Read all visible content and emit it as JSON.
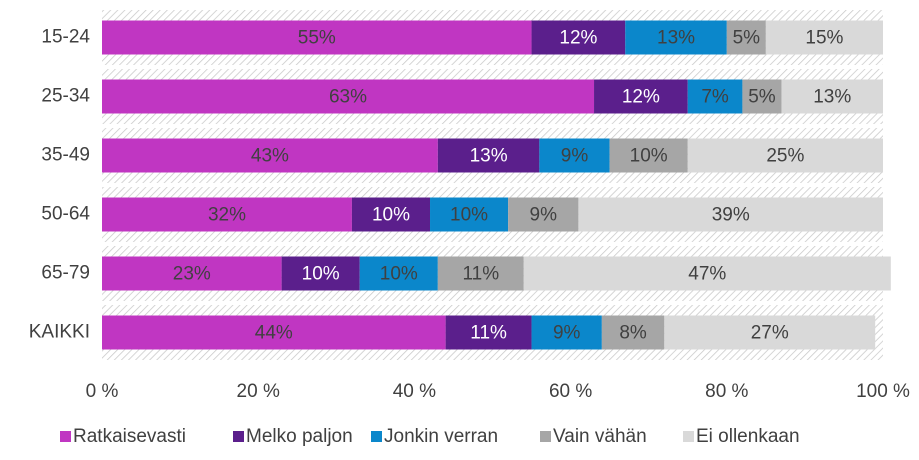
{
  "chart_data": {
    "type": "stacked-barh",
    "categories": [
      "15-24",
      "25-34",
      "35-49",
      "50-64",
      "65-79",
      "KAIKKI"
    ],
    "series": [
      {
        "name": "Ratkaisevasti",
        "color": "#c036c2",
        "values": [
          55,
          63,
          43,
          32,
          23,
          44
        ],
        "value_labels": [
          "55%",
          "63%",
          "43%",
          "32%",
          "23%",
          "44%"
        ]
      },
      {
        "name": "Melko paljon",
        "color": "#5b1f8c",
        "values": [
          12,
          12,
          13,
          10,
          10,
          11
        ],
        "value_labels": [
          "12%",
          "12%",
          "13%",
          "10%",
          "10%",
          "11%"
        ]
      },
      {
        "name": "Jonkin verran",
        "color": "#0b87cb",
        "values": [
          13,
          7,
          9,
          10,
          10,
          9
        ],
        "value_labels": [
          "13%",
          "7%",
          "9%",
          "10%",
          "10%",
          "9%"
        ]
      },
      {
        "name": "Vain vähän",
        "color": "#a6a6a6",
        "values": [
          5,
          5,
          10,
          9,
          11,
          8
        ],
        "value_labels": [
          "5%",
          "5%",
          "10%",
          "9%",
          "11%",
          "8%"
        ]
      },
      {
        "name": "Ei ollenkaan",
        "color": "#d9d9d9",
        "values": [
          15,
          13,
          25,
          39,
          47,
          27
        ],
        "value_labels": [
          "15%",
          "13%",
          "25%",
          "39%",
          "47%",
          "27%"
        ]
      }
    ],
    "xlim": [
      0,
      100
    ],
    "xticks": [
      {
        "value": 0,
        "label": "0 %"
      },
      {
        "value": 20,
        "label": "20 %"
      },
      {
        "value": 40,
        "label": "40 %"
      },
      {
        "value": 60,
        "label": "60 %"
      },
      {
        "value": 80,
        "label": "80 %"
      },
      {
        "value": 100,
        "label": "100 %"
      }
    ],
    "legend": "bottom"
  }
}
